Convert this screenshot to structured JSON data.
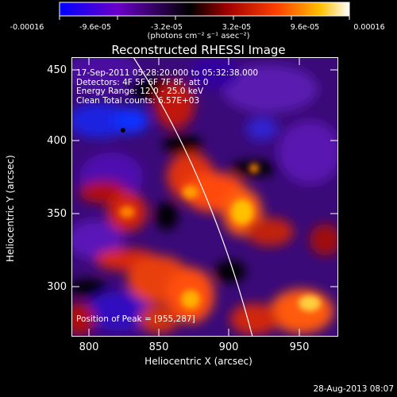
{
  "colorbar": {
    "ticks": [
      "-0.00016",
      "-9.6e-05",
      "-3.2e-05",
      "3.2e-05",
      "9.6e-05",
      "0.00016"
    ],
    "units": "(photons cm⁻² s⁻¹ asec⁻²)",
    "colors": [
      "#0000ff",
      "#6a00c8",
      "#000000",
      "#a00000",
      "#ff4000",
      "#ffc000",
      "#ffffff"
    ]
  },
  "plot": {
    "title": "Reconstructed RHESSI Image",
    "xlabel": "Heliocentric X (arcsec)",
    "ylabel": "Heliocentric Y (arcsec)",
    "xticks": [
      "800",
      "850",
      "900",
      "950"
    ],
    "yticks": [
      "450",
      "400",
      "350",
      "300"
    ],
    "xrange": [
      780,
      972
    ],
    "yrange": [
      262,
      456
    ]
  },
  "info": {
    "line1": "17-Sep-2011 05:28:20.000 to 05:32:38.000",
    "line2": "Detectors: 4F 5F 6F 7F 8F, att 0",
    "line3": "Energy Range: 12.0 - 25.0 keV",
    "line4": "Clean    Total counts: 6.57E+03",
    "peak": "Position of Peak = [955,287]"
  },
  "peak_position": [
    955,
    287
  ],
  "footer": "28-Aug-2013 08:07"
}
